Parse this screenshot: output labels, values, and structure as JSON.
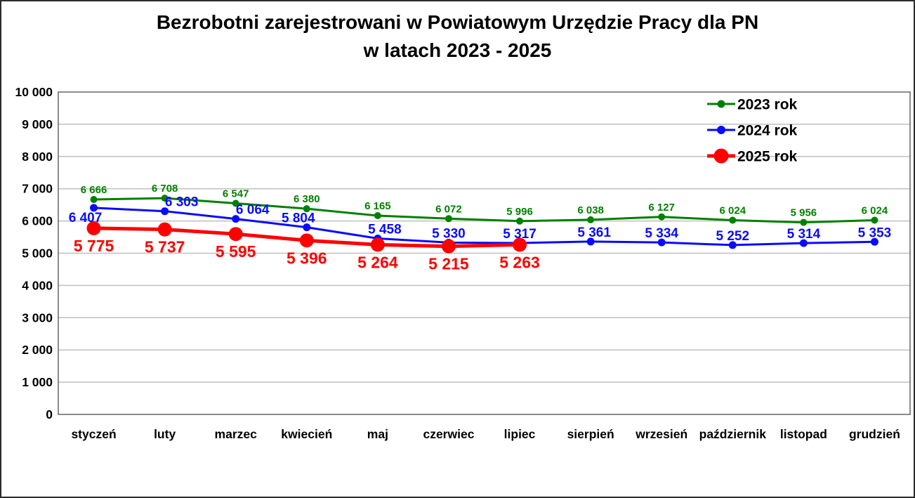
{
  "title": {
    "line1": "Bezrobotni zarejestrowani w Powiatowym Urzędzie Pracy dla PN",
    "line2": "w latach 2023 - 2025"
  },
  "chart_data": {
    "type": "line",
    "categories": [
      "styczeń",
      "luty",
      "marzec",
      "kwiecień",
      "maj",
      "czerwiec",
      "lipiec",
      "sierpień",
      "wrzesień",
      "październik",
      "listopad",
      "grudzień"
    ],
    "series": [
      {
        "name": "2023 rok",
        "color": "#008000",
        "values": [
          6666,
          6708,
          6547,
          6380,
          6165,
          6072,
          5996,
          6038,
          6127,
          6024,
          5956,
          6024
        ]
      },
      {
        "name": "2024 rok",
        "color": "#0a0aff",
        "values": [
          6407,
          6303,
          6064,
          5804,
          5458,
          5330,
          5317,
          5361,
          5334,
          5252,
          5314,
          5353
        ]
      },
      {
        "name": "2025 rok",
        "color": "#ff0000",
        "values": [
          5775,
          5737,
          5595,
          5396,
          5264,
          5215,
          5263
        ]
      }
    ],
    "ylim": [
      0,
      10000
    ],
    "ytick_step": 1000,
    "ytick_labels": [
      "0",
      "1 000",
      "2 000",
      "3 000",
      "4 000",
      "5 000",
      "6 000",
      "7 000",
      "8 000",
      "9 000",
      "10 000"
    ],
    "grid": true,
    "legend_position": "top-right",
    "number_format": "space-thousands",
    "grid_color": "#bfbfbf",
    "plot_border_color": "#7f7f7f",
    "text_color": "#000000"
  }
}
